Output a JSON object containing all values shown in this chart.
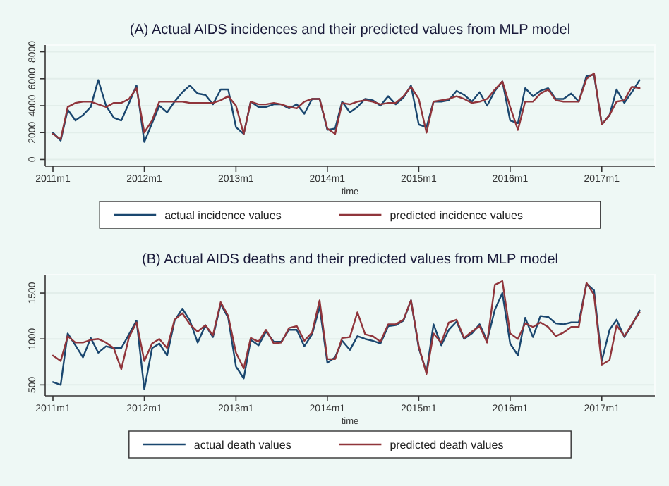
{
  "chart_data": [
    {
      "type": "line",
      "title": "(A) Actual AIDS incidences and their predicted values from MLP model",
      "xlabel": "time",
      "x": [
        "2011-01",
        "2011-02",
        "2011-03",
        "2011-04",
        "2011-05",
        "2011-06",
        "2011-07",
        "2011-08",
        "2011-09",
        "2011-10",
        "2011-11",
        "2011-12",
        "2012-01",
        "2012-02",
        "2012-03",
        "2012-04",
        "2012-05",
        "2012-06",
        "2012-07",
        "2012-08",
        "2012-09",
        "2012-10",
        "2012-11",
        "2012-12",
        "2013-01",
        "2013-02",
        "2013-03",
        "2013-04",
        "2013-05",
        "2013-06",
        "2013-07",
        "2013-08",
        "2013-09",
        "2013-10",
        "2013-11",
        "2013-12",
        "2014-01",
        "2014-02",
        "2014-03",
        "2014-04",
        "2014-05",
        "2014-06",
        "2014-07",
        "2014-08",
        "2014-09",
        "2014-10",
        "2014-11",
        "2014-12",
        "2015-01",
        "2015-02",
        "2015-03",
        "2015-04",
        "2015-05",
        "2015-06",
        "2015-07",
        "2015-08",
        "2015-09",
        "2015-10",
        "2015-11",
        "2015-12",
        "2016-01",
        "2016-02",
        "2016-03",
        "2016-04",
        "2016-05",
        "2016-06",
        "2016-07",
        "2016-08",
        "2016-09",
        "2016-10",
        "2016-11",
        "2016-12",
        "2017-01",
        "2017-02",
        "2017-03",
        "2017-04",
        "2017-05",
        "2017-06"
      ],
      "series": [
        {
          "name": "actual incidence values",
          "color": "#1a476f",
          "values": [
            2000,
            1400,
            3700,
            2900,
            3300,
            3900,
            5900,
            4000,
            3100,
            2900,
            4200,
            5500,
            1300,
            2700,
            4000,
            3500,
            4300,
            5000,
            5500,
            4900,
            4800,
            4100,
            5200,
            5200,
            2400,
            1900,
            4300,
            3900,
            3900,
            4100,
            4100,
            3800,
            4100,
            3400,
            4500,
            4500,
            2200,
            2300,
            4300,
            3500,
            3900,
            4500,
            4400,
            4000,
            4700,
            4100,
            4600,
            5500,
            2600,
            2400,
            4300,
            4300,
            4400,
            5100,
            4800,
            4300,
            5000,
            4000,
            5100,
            5800,
            2900,
            2700,
            5300,
            4700,
            5100,
            5300,
            4500,
            4500,
            4900,
            4300,
            6200,
            6300,
            2600,
            3300,
            5200,
            4200,
            5000,
            5900
          ]
        },
        {
          "name": "predicted incidence values",
          "color": "#90353b",
          "values": [
            1900,
            1500,
            3900,
            4200,
            4300,
            4300,
            4100,
            3900,
            4200,
            4200,
            4500,
            5300,
            2000,
            2900,
            4300,
            4300,
            4300,
            4300,
            4200,
            4200,
            4200,
            4200,
            4400,
            4700,
            4000,
            1900,
            4300,
            4100,
            4100,
            4200,
            4100,
            3900,
            3800,
            4300,
            4500,
            4500,
            2300,
            1900,
            4200,
            4100,
            4300,
            4400,
            4300,
            4100,
            4200,
            4200,
            4700,
            5400,
            4500,
            2000,
            4300,
            4400,
            4500,
            4700,
            4500,
            4200,
            4300,
            4500,
            5200,
            5800,
            3900,
            2200,
            4300,
            4300,
            4900,
            5200,
            4400,
            4300,
            4300,
            4300,
            6000,
            6400,
            2600,
            3300,
            4300,
            4400,
            5400,
            5300
          ]
        }
      ],
      "xlim": [
        "2010-12",
        "2017-08"
      ],
      "xticks": [
        {
          "value": "2011-01",
          "label": "2011m1"
        },
        {
          "value": "2012-01",
          "label": "2012m1"
        },
        {
          "value": "2013-01",
          "label": "2013m1"
        },
        {
          "value": "2014-01",
          "label": "2014m1"
        },
        {
          "value": "2015-01",
          "label": "2015m1"
        },
        {
          "value": "2016-01",
          "label": "2016m1"
        },
        {
          "value": "2017-01",
          "label": "2017m1"
        }
      ],
      "ylim": [
        -500,
        8500
      ],
      "yticks": [
        0,
        2000,
        4000,
        6000,
        8000
      ],
      "grid": "y",
      "legend": "bottom",
      "marker": "none",
      "line_style": "solid"
    },
    {
      "type": "line",
      "title": "(B) Actual AIDS deaths and their predicted values from MLP model",
      "xlabel": "time",
      "x": [
        "2011-01",
        "2011-02",
        "2011-03",
        "2011-04",
        "2011-05",
        "2011-06",
        "2011-07",
        "2011-08",
        "2011-09",
        "2011-10",
        "2011-11",
        "2011-12",
        "2012-01",
        "2012-02",
        "2012-03",
        "2012-04",
        "2012-05",
        "2012-06",
        "2012-07",
        "2012-08",
        "2012-09",
        "2012-10",
        "2012-11",
        "2012-12",
        "2013-01",
        "2013-02",
        "2013-03",
        "2013-04",
        "2013-05",
        "2013-06",
        "2013-07",
        "2013-08",
        "2013-09",
        "2013-10",
        "2013-11",
        "2013-12",
        "2014-01",
        "2014-02",
        "2014-03",
        "2014-04",
        "2014-05",
        "2014-06",
        "2014-07",
        "2014-08",
        "2014-09",
        "2014-10",
        "2014-11",
        "2014-12",
        "2015-01",
        "2015-02",
        "2015-03",
        "2015-04",
        "2015-05",
        "2015-06",
        "2015-07",
        "2015-08",
        "2015-09",
        "2015-10",
        "2015-11",
        "2015-12",
        "2016-01",
        "2016-02",
        "2016-03",
        "2016-04",
        "2016-05",
        "2016-06",
        "2016-07",
        "2016-08",
        "2016-09",
        "2016-10",
        "2016-11",
        "2016-12",
        "2017-01",
        "2017-02",
        "2017-03",
        "2017-04",
        "2017-05",
        "2017-06"
      ],
      "series": [
        {
          "name": "actual death values",
          "color": "#1a476f",
          "values": [
            530,
            500,
            1060,
            930,
            800,
            1010,
            850,
            920,
            900,
            900,
            1050,
            1200,
            450,
            900,
            950,
            820,
            1200,
            1330,
            1200,
            960,
            1150,
            1020,
            1380,
            1230,
            700,
            570,
            990,
            930,
            1080,
            970,
            970,
            1100,
            1100,
            920,
            1050,
            1350,
            740,
            800,
            980,
            880,
            1030,
            1000,
            980,
            950,
            1140,
            1150,
            1200,
            1420,
            900,
            640,
            1160,
            930,
            1100,
            1190,
            1000,
            1060,
            1160,
            980,
            1320,
            1500,
            950,
            820,
            1230,
            1020,
            1250,
            1240,
            1170,
            1160,
            1180,
            1180,
            1600,
            1530,
            760,
            1100,
            1210,
            1020,
            1150,
            1310
          ]
        },
        {
          "name": "predicted death values",
          "color": "#90353b",
          "values": [
            820,
            760,
            1030,
            960,
            960,
            990,
            1000,
            960,
            900,
            670,
            1020,
            1180,
            760,
            950,
            1000,
            900,
            1210,
            1280,
            1160,
            1080,
            1150,
            1040,
            1400,
            1250,
            850,
            680,
            1010,
            970,
            1100,
            950,
            960,
            1120,
            1140,
            980,
            1070,
            1420,
            780,
            780,
            1010,
            1020,
            1290,
            1050,
            1030,
            970,
            1160,
            1160,
            1210,
            1420,
            920,
            620,
            1060,
            960,
            1180,
            1210,
            1010,
            1080,
            1140,
            960,
            1590,
            1630,
            1060,
            1000,
            1170,
            1130,
            1180,
            1130,
            1030,
            1070,
            1130,
            1130,
            1610,
            1480,
            720,
            770,
            1150,
            1030,
            1160,
            1290
          ]
        }
      ],
      "xlim": [
        "2010-12",
        "2017-08"
      ],
      "xticks": [
        {
          "value": "2011-01",
          "label": "2011m1"
        },
        {
          "value": "2012-01",
          "label": "2012m1"
        },
        {
          "value": "2013-01",
          "label": "2013m1"
        },
        {
          "value": "2014-01",
          "label": "2014m1"
        },
        {
          "value": "2015-01",
          "label": "2015m1"
        },
        {
          "value": "2016-01",
          "label": "2016m1"
        },
        {
          "value": "2017-01",
          "label": "2017m1"
        }
      ],
      "ylim": [
        380,
        1700
      ],
      "yticks": [
        500,
        1000,
        1500
      ],
      "grid": "y",
      "legend": "bottom",
      "marker": "none",
      "line_style": "solid"
    }
  ]
}
